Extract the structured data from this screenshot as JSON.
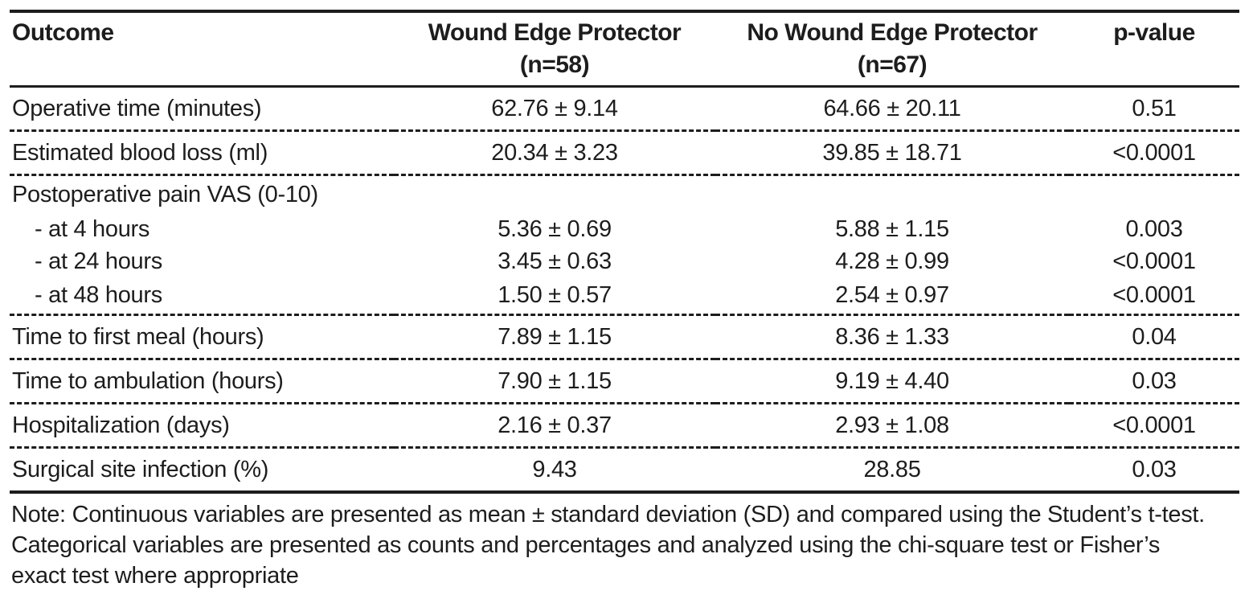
{
  "table": {
    "columns": [
      {
        "label": "Outcome",
        "sublabel": ""
      },
      {
        "label": "Wound Edge Protector",
        "sublabel": "(n=58)"
      },
      {
        "label": "No Wound Edge Protector",
        "sublabel": "(n=67)"
      },
      {
        "label": "p-value",
        "sublabel": ""
      }
    ],
    "rows": [
      {
        "label": "Operative time (minutes)",
        "wep": "62.76 ± 9.14",
        "no_wep": "64.66 ± 20.11",
        "p": "0.51"
      },
      {
        "label": "Estimated blood loss (ml)",
        "wep": "20.34 ± 3.23",
        "no_wep": "39.85 ± 18.71",
        "p": "<0.0001"
      },
      {
        "label": "Postoperative pain VAS (0-10)",
        "wep": "",
        "no_wep": "",
        "p": ""
      },
      {
        "label": "- at 4 hours",
        "wep": "5.36 ± 0.69",
        "no_wep": "5.88 ± 1.15",
        "p": "0.003"
      },
      {
        "label": "- at 24 hours",
        "wep": "3.45 ± 0.63",
        "no_wep": "4.28 ± 0.99",
        "p": "<0.0001"
      },
      {
        "label": "- at 48 hours",
        "wep": "1.50 ± 0.57",
        "no_wep": "2.54 ± 0.97",
        "p": "<0.0001"
      },
      {
        "label": "Time to first meal (hours)",
        "wep": "7.89 ± 1.15",
        "no_wep": "8.36 ± 1.33",
        "p": "0.04"
      },
      {
        "label": "Time to ambulation (hours)",
        "wep": "7.90 ± 1.15",
        "no_wep": "9.19 ± 4.40",
        "p": "0.03"
      },
      {
        "label": "Hospitalization (days)",
        "wep": "2.16 ± 0.37",
        "no_wep": "2.93 ± 1.08",
        "p": "<0.0001"
      },
      {
        "label": "Surgical site infection (%)",
        "wep": "9.43",
        "no_wep": "28.85",
        "p": "0.03"
      }
    ],
    "note": "Note: Continuous variables are presented as mean ± standard deviation (SD) and compared using the Student’s t-test. Categorical variables are presented as counts and percentages and analyzed using the chi-square test or Fisher’s exact test where appropriate"
  }
}
